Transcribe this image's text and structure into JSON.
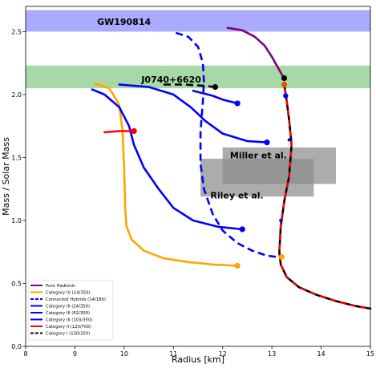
{
  "chart_data": {
    "type": "line",
    "xlabel": "Radius [km]",
    "ylabel": "Mass / Solar Mass",
    "xlim": [
      8,
      15
    ],
    "ylim": [
      0.0,
      2.7
    ],
    "xticks": [
      "8",
      "9",
      "10",
      "11",
      "12",
      "13",
      "14",
      "15"
    ],
    "yticks": [
      "0.0",
      "0.5",
      "1.0",
      "1.5",
      "2.0",
      "2.5"
    ],
    "grid": false,
    "legend_position": "lower-left",
    "bands": [
      {
        "label": "GW190814",
        "y": [
          2.5,
          2.67
        ],
        "color": "#aaaaff"
      },
      {
        "label": "J0740+6620",
        "y": [
          2.05,
          2.23
        ],
        "color": "#a7d9a7"
      }
    ],
    "regions": [
      {
        "label": "Miller et al.",
        "x": [
          12.0,
          14.3
        ],
        "y": [
          1.29,
          1.58
        ],
        "color": "#8c8c8c"
      },
      {
        "label": "Riley et al.",
        "x": [
          11.55,
          13.85
        ],
        "y": [
          1.19,
          1.49
        ],
        "color": "#8c8c8c"
      }
    ],
    "series": [
      {
        "name": "Pure Hadronic",
        "color": "#800080",
        "style": "solid",
        "x": [
          12.1,
          12.4,
          12.65,
          12.85,
          13.0,
          13.1,
          13.2,
          13.25
        ],
        "y": [
          2.53,
          2.51,
          2.46,
          2.39,
          2.3,
          2.23,
          2.16,
          2.13
        ],
        "marker": {
          "x": 13.25,
          "y": 2.13,
          "color": "#000000"
        }
      },
      {
        "name": "Category IV (14/350)",
        "color": "#ffa500",
        "style": "solid",
        "x": [
          9.4,
          9.7,
          9.9,
          9.97,
          10.0,
          10.02,
          10.05,
          10.15,
          10.4,
          10.8,
          11.3,
          11.8,
          12.3
        ],
        "y": [
          2.09,
          2.05,
          1.92,
          1.7,
          1.4,
          1.1,
          0.95,
          0.85,
          0.76,
          0.7,
          0.67,
          0.65,
          0.64
        ],
        "marker": {
          "x": 12.3,
          "y": 0.64,
          "color": "#ffa500"
        }
      },
      {
        "name": "Connected Hybrids (14/180)",
        "color": "#0000ff",
        "style": "dashed",
        "x": [
          11.05,
          11.3,
          11.5,
          11.6,
          11.62,
          11.6,
          11.55,
          11.55,
          11.62,
          11.8,
          12.0,
          12.3,
          12.6,
          12.9,
          13.1,
          13.2
        ],
        "y": [
          2.49,
          2.46,
          2.38,
          2.25,
          2.1,
          1.95,
          1.7,
          1.45,
          1.25,
          1.05,
          0.92,
          0.82,
          0.76,
          0.72,
          0.71,
          0.71
        ],
        "marker": {
          "x": 13.2,
          "y": 0.71,
          "color": "#ffa500"
        }
      },
      {
        "name": "Category III (24/350)",
        "color": "#0000ff",
        "style": "solid",
        "x": [
          11.4,
          11.8,
          12.0,
          12.3
        ],
        "y": [
          2.03,
          1.99,
          1.96,
          1.93
        ],
        "marker": {
          "x": 12.3,
          "y": 1.93,
          "color": "#0000ff"
        }
      },
      {
        "name": "Category III (62/300)",
        "color": "#0000ff",
        "style": "solid",
        "x": [
          9.9,
          10.5,
          11.0,
          11.35,
          11.65,
          12.0,
          12.5,
          12.9
        ],
        "y": [
          2.08,
          2.06,
          2.0,
          1.9,
          1.79,
          1.69,
          1.63,
          1.62
        ],
        "marker": {
          "x": 12.9,
          "y": 1.62,
          "color": "#0000ff"
        }
      },
      {
        "name": "Category III (103/350)",
        "color": "#0000ff",
        "style": "solid",
        "x": [
          9.35,
          9.6,
          9.9,
          10.1,
          10.2,
          10.4,
          10.7,
          11.0,
          11.4,
          11.9,
          12.4
        ],
        "y": [
          2.04,
          2.0,
          1.9,
          1.75,
          1.6,
          1.42,
          1.25,
          1.1,
          1.0,
          0.95,
          0.93
        ],
        "marker": {
          "x": 12.4,
          "y": 0.93,
          "color": "#0000ff"
        }
      },
      {
        "name": "Category II (120/700)",
        "color": "#ff0000",
        "style": "solid",
        "x": [
          9.6,
          9.9,
          10.2
        ],
        "y": [
          1.7,
          1.71,
          1.71
        ],
        "marker": {
          "x": 10.2,
          "y": 1.71,
          "color": "#ff0000"
        }
      },
      {
        "name": "Category I (130/350)",
        "color": "#000000",
        "style": "dashed",
        "x": [
          10.8,
          11.2,
          11.6,
          11.85
        ],
        "y": [
          2.08,
          2.08,
          2.07,
          2.06
        ],
        "marker": {
          "x": 11.85,
          "y": 2.06,
          "color": "#000000"
        }
      },
      {
        "name": "",
        "color": "#000000",
        "style": "solid",
        "overlay": "#ff0000",
        "x": [
          13.25,
          13.3,
          13.35,
          13.4,
          13.35,
          13.25,
          13.18,
          13.15,
          13.18,
          13.3,
          13.55,
          13.9,
          14.3,
          14.7,
          15.0
        ],
        "y": [
          2.08,
          1.95,
          1.8,
          1.6,
          1.35,
          1.15,
          0.95,
          0.75,
          0.65,
          0.55,
          0.47,
          0.41,
          0.36,
          0.32,
          0.3
        ],
        "marker": {
          "x": 13.25,
          "y": 2.08,
          "color": "#ff4400"
        }
      }
    ],
    "extra_markers": [
      {
        "x": 13.28,
        "y": 1.99,
        "color": "#0000ff",
        "size": 3.2
      },
      {
        "x": 13.35,
        "y": 1.64,
        "color": "#0000ff",
        "size": 2.0
      },
      {
        "x": 13.18,
        "y": 1.0,
        "color": "#0000ff",
        "size": 2.0
      }
    ],
    "legend": [
      {
        "label": "Pure Hadronic",
        "color": "#800080",
        "style": "solid"
      },
      {
        "label": "Category IV (14/350)",
        "color": "#ffa500",
        "style": "solid"
      },
      {
        "label": "Connected Hybrids (14/180)",
        "color": "#0000ff",
        "style": "dashed"
      },
      {
        "label": "Category III (24/350)",
        "color": "#0000ff",
        "style": "solid"
      },
      {
        "label": "Category III (62/300)",
        "color": "#0000ff",
        "style": "solid"
      },
      {
        "label": "Category III (103/350)",
        "color": "#0000ff",
        "style": "solid"
      },
      {
        "label": "Category II (120/700)",
        "color": "#ff0000",
        "style": "solid"
      },
      {
        "label": "Category I (130/350)",
        "color": "#000000",
        "style": "dashed"
      }
    ]
  }
}
